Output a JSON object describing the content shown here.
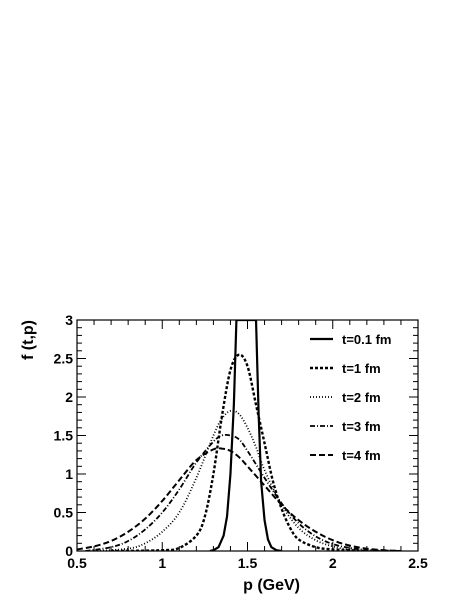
{
  "chart_data": {
    "type": "line",
    "xlabel": "p (GeV)",
    "ylabel": "f (t,p)",
    "xlim": [
      0.5,
      2.5
    ],
    "ylim": [
      0,
      3
    ],
    "x_major_ticks": [
      0.5,
      1,
      1.5,
      2,
      2.5
    ],
    "x_tick_labels": [
      "0.5",
      "1",
      "1.5",
      "2",
      "2.5"
    ],
    "y_major_ticks": [
      0,
      0.5,
      1,
      1.5,
      2,
      2.5,
      3
    ],
    "y_tick_labels": [
      "0",
      "0.5",
      "1",
      "1.5",
      "2",
      "2.5",
      "3"
    ],
    "grid": false,
    "legend_position": "top-right",
    "series": [
      {
        "name": "t=0.1 fm",
        "line_style": "solid",
        "x": [
          1.28,
          1.3,
          1.33,
          1.36,
          1.38,
          1.4,
          1.42,
          1.435,
          1.55,
          1.565,
          1.58,
          1.6,
          1.62,
          1.64,
          1.67,
          1.7
        ],
        "y": [
          0.0,
          0.01,
          0.05,
          0.2,
          0.45,
          1.0,
          1.9,
          3.0,
          3.0,
          1.8,
          0.9,
          0.4,
          0.15,
          0.05,
          0.01,
          0.0
        ]
      },
      {
        "name": "t=1 fm",
        "line_style": "densely-dashed",
        "x": [
          0.7,
          1.0,
          1.1,
          1.2,
          1.25,
          1.3,
          1.35,
          1.4,
          1.45,
          1.5,
          1.55,
          1.6,
          1.65,
          1.7,
          1.75,
          1.8,
          1.9,
          2.0,
          2.2
        ],
        "y": [
          0.0,
          0.01,
          0.04,
          0.2,
          0.45,
          1.0,
          1.75,
          2.35,
          2.55,
          2.4,
          1.9,
          1.4,
          0.9,
          0.55,
          0.3,
          0.15,
          0.05,
          0.02,
          0.0
        ]
      },
      {
        "name": "t=2 fm",
        "line_style": "dotted",
        "x": [
          0.6,
          0.8,
          0.9,
          1.0,
          1.1,
          1.2,
          1.3,
          1.35,
          1.4,
          1.45,
          1.5,
          1.55,
          1.6,
          1.7,
          1.8,
          1.9,
          2.0,
          2.1,
          2.3
        ],
        "y": [
          0.0,
          0.03,
          0.1,
          0.25,
          0.5,
          0.95,
          1.5,
          1.72,
          1.82,
          1.78,
          1.6,
          1.35,
          1.05,
          0.6,
          0.3,
          0.14,
          0.06,
          0.02,
          0.0
        ]
      },
      {
        "name": "t=3 fm",
        "line_style": "dash-dot",
        "x": [
          0.55,
          0.7,
          0.8,
          0.9,
          1.0,
          1.1,
          1.2,
          1.3,
          1.35,
          1.4,
          1.45,
          1.5,
          1.6,
          1.7,
          1.8,
          1.9,
          2.0,
          2.1,
          2.2,
          2.4
        ],
        "y": [
          0.0,
          0.05,
          0.13,
          0.28,
          0.5,
          0.8,
          1.15,
          1.42,
          1.5,
          1.5,
          1.45,
          1.3,
          0.95,
          0.62,
          0.36,
          0.19,
          0.09,
          0.04,
          0.015,
          0.0
        ]
      },
      {
        "name": "t=4 fm",
        "line_style": "dashed",
        "x": [
          0.5,
          0.6,
          0.7,
          0.8,
          0.9,
          1.0,
          1.1,
          1.2,
          1.3,
          1.35,
          1.4,
          1.45,
          1.5,
          1.6,
          1.7,
          1.8,
          1.9,
          2.0,
          2.1,
          2.2,
          2.3,
          2.4
        ],
        "y": [
          0.02,
          0.06,
          0.13,
          0.25,
          0.42,
          0.65,
          0.92,
          1.18,
          1.32,
          1.33,
          1.3,
          1.22,
          1.1,
          0.85,
          0.6,
          0.4,
          0.25,
          0.14,
          0.07,
          0.03,
          0.01,
          0.0
        ]
      }
    ]
  }
}
